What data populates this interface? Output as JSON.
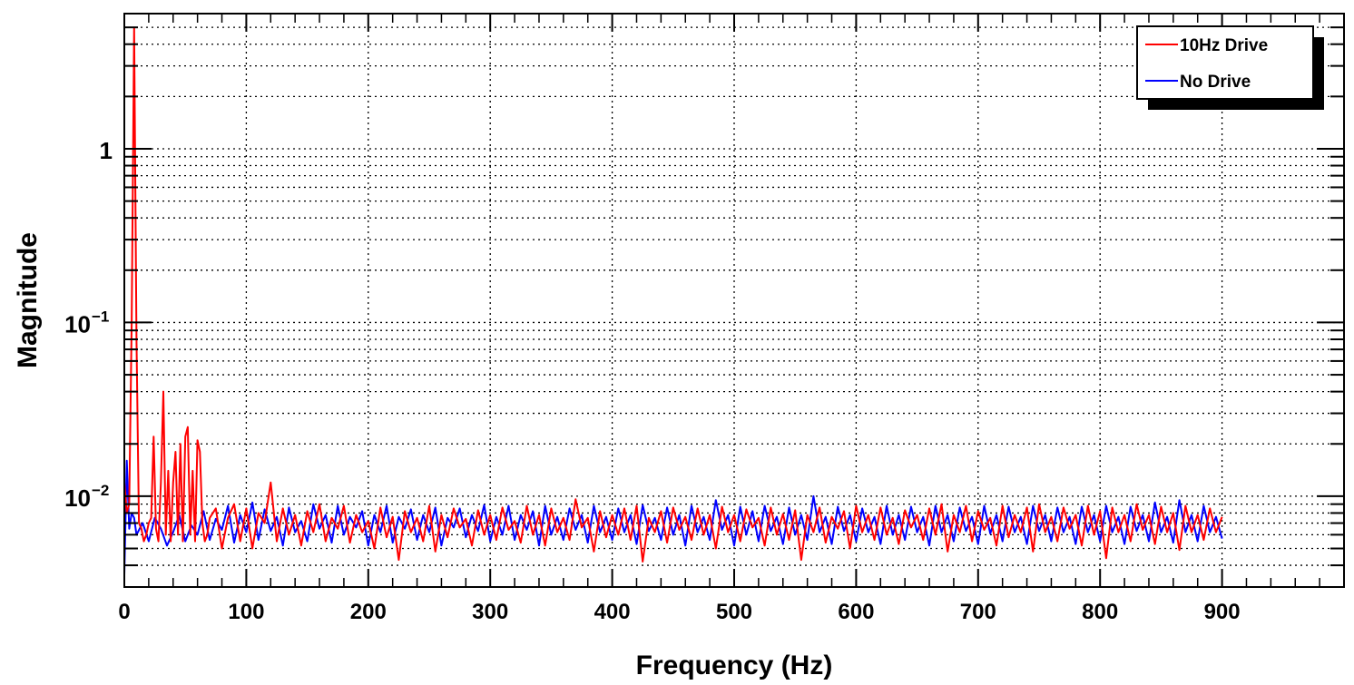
{
  "chart_data": {
    "type": "line",
    "title": "",
    "xlabel": "Frequency (Hz)",
    "ylabel": "Magnitude",
    "xlim": [
      0,
      1000
    ],
    "ylim": [
      0.003,
      6
    ],
    "yscale": "log",
    "x_ticks": [
      "0",
      "100",
      "200",
      "300",
      "400",
      "500",
      "600",
      "700",
      "800",
      "900"
    ],
    "y_ticks": [
      {
        "value": 1,
        "base": "1",
        "exp": ""
      },
      {
        "value": 0.1,
        "base": "10",
        "exp": "−1"
      },
      {
        "value": 0.01,
        "base": "10",
        "exp": "−2"
      }
    ],
    "grid": true,
    "legend_position": "top-right",
    "series": [
      {
        "name": "10Hz Drive",
        "color": "#ff0000",
        "x": [
          0,
          2,
          4,
          6,
          8,
          10,
          12,
          14,
          16,
          18,
          20,
          22,
          24,
          26,
          28,
          30,
          32,
          34,
          36,
          38,
          40,
          42,
          44,
          46,
          48,
          50,
          52,
          54,
          56,
          58,
          60,
          62,
          64,
          66,
          68,
          70,
          75,
          80,
          85,
          90,
          95,
          100,
          105,
          110,
          115,
          120,
          125,
          130,
          135,
          140,
          145,
          150,
          155,
          160,
          165,
          170,
          175,
          180,
          185,
          190,
          195,
          200,
          205,
          210,
          215,
          220,
          225,
          230,
          235,
          240,
          245,
          250,
          255,
          260,
          265,
          270,
          275,
          280,
          285,
          290,
          295,
          300,
          305,
          310,
          315,
          320,
          325,
          330,
          335,
          340,
          345,
          350,
          355,
          360,
          365,
          370,
          375,
          380,
          385,
          390,
          395,
          400,
          405,
          410,
          415,
          420,
          425,
          430,
          435,
          440,
          445,
          450,
          455,
          460,
          465,
          470,
          475,
          480,
          485,
          490,
          495,
          500,
          505,
          510,
          515,
          520,
          525,
          530,
          535,
          540,
          545,
          550,
          555,
          560,
          565,
          570,
          575,
          580,
          585,
          590,
          595,
          600,
          605,
          610,
          615,
          620,
          625,
          630,
          635,
          640,
          645,
          650,
          655,
          660,
          665,
          670,
          675,
          680,
          685,
          690,
          695,
          700,
          705,
          710,
          715,
          720,
          725,
          730,
          735,
          740,
          745,
          750,
          755,
          760,
          765,
          770,
          775,
          780,
          785,
          790,
          795,
          800,
          805,
          810,
          815,
          820,
          825,
          830,
          835,
          840,
          845,
          850,
          855,
          860,
          865,
          870,
          875,
          880,
          885,
          890,
          895,
          900
        ],
        "y": [
          0.012,
          0.008,
          0.009,
          0.1,
          5.0,
          0.08,
          0.007,
          0.0065,
          0.0055,
          0.006,
          0.007,
          0.0075,
          0.022,
          0.0065,
          0.0055,
          0.012,
          0.04,
          0.006,
          0.014,
          0.0055,
          0.012,
          0.018,
          0.006,
          0.02,
          0.0055,
          0.022,
          0.025,
          0.006,
          0.014,
          0.0055,
          0.021,
          0.018,
          0.007,
          0.0055,
          0.006,
          0.0075,
          0.0085,
          0.005,
          0.0075,
          0.009,
          0.0055,
          0.0085,
          0.005,
          0.008,
          0.007,
          0.012,
          0.0055,
          0.0085,
          0.006,
          0.0078,
          0.0052,
          0.0082,
          0.0062,
          0.009,
          0.0055,
          0.0075,
          0.0065,
          0.0088,
          0.0054,
          0.0078,
          0.0062,
          0.0072,
          0.005,
          0.0086,
          0.0058,
          0.0076,
          0.0043,
          0.0082,
          0.0062,
          0.0075,
          0.0055,
          0.0088,
          0.0048,
          0.0078,
          0.0058,
          0.0085,
          0.0066,
          0.0074,
          0.0052,
          0.0083,
          0.006,
          0.0078,
          0.0056,
          0.0086,
          0.0064,
          0.0072,
          0.0054,
          0.0088,
          0.006,
          0.0078,
          0.0052,
          0.0085,
          0.0062,
          0.0075,
          0.0056,
          0.0096,
          0.0066,
          0.0075,
          0.0048,
          0.0082,
          0.0058,
          0.0078,
          0.006,
          0.0085,
          0.0056,
          0.0088,
          0.0042,
          0.0075,
          0.0062,
          0.0082,
          0.0054,
          0.0086,
          0.0064,
          0.0076,
          0.0056,
          0.0085,
          0.006,
          0.0078,
          0.005,
          0.0087,
          0.0062,
          0.0078,
          0.0055,
          0.0084,
          0.0066,
          0.0075,
          0.0052,
          0.0086,
          0.006,
          0.0079,
          0.0056,
          0.0083,
          0.0043,
          0.0078,
          0.0062,
          0.0086,
          0.0054,
          0.0076,
          0.0065,
          0.0082,
          0.005,
          0.0088,
          0.0062,
          0.0078,
          0.0056,
          0.0086,
          0.006,
          0.0075,
          0.0053,
          0.0083,
          0.0066,
          0.0078,
          0.0056,
          0.0085,
          0.006,
          0.009,
          0.0048,
          0.0078,
          0.0062,
          0.0088,
          0.0055,
          0.0082,
          0.0064,
          0.0075,
          0.0052,
          0.0088,
          0.0058,
          0.0078,
          0.0062,
          0.0086,
          0.0048,
          0.009,
          0.0062,
          0.0076,
          0.0055,
          0.0086,
          0.0065,
          0.0078,
          0.0052,
          0.0088,
          0.006,
          0.0082,
          0.0044,
          0.0086,
          0.0062,
          0.0078,
          0.0055,
          0.009,
          0.0064,
          0.0078,
          0.0053,
          0.0087,
          0.0062,
          0.008,
          0.0049,
          0.0088,
          0.0062,
          0.0078,
          0.0056,
          0.0085,
          0.0062,
          0.0076
        ]
      },
      {
        "name": "No Drive",
        "color": "#0000ff",
        "x": [
          0,
          2,
          4,
          6,
          8,
          10,
          15,
          20,
          25,
          30,
          35,
          40,
          45,
          50,
          55,
          60,
          65,
          70,
          75,
          80,
          85,
          90,
          95,
          100,
          105,
          110,
          115,
          120,
          125,
          130,
          135,
          140,
          145,
          150,
          155,
          160,
          165,
          170,
          175,
          180,
          185,
          190,
          195,
          200,
          205,
          210,
          215,
          220,
          225,
          230,
          235,
          240,
          245,
          250,
          255,
          260,
          265,
          270,
          275,
          280,
          285,
          290,
          295,
          300,
          305,
          310,
          315,
          320,
          325,
          330,
          335,
          340,
          345,
          350,
          355,
          360,
          365,
          370,
          375,
          380,
          385,
          390,
          395,
          400,
          405,
          410,
          415,
          420,
          425,
          430,
          435,
          440,
          445,
          450,
          455,
          460,
          465,
          470,
          475,
          480,
          485,
          490,
          495,
          500,
          505,
          510,
          515,
          520,
          525,
          530,
          535,
          540,
          545,
          550,
          555,
          560,
          565,
          570,
          575,
          580,
          585,
          590,
          595,
          600,
          605,
          610,
          615,
          620,
          625,
          630,
          635,
          640,
          645,
          650,
          655,
          660,
          665,
          670,
          675,
          680,
          685,
          690,
          695,
          700,
          705,
          710,
          715,
          720,
          725,
          730,
          735,
          740,
          745,
          750,
          755,
          760,
          765,
          770,
          775,
          780,
          785,
          790,
          795,
          800,
          805,
          810,
          815,
          820,
          825,
          830,
          835,
          840,
          845,
          850,
          855,
          860,
          865,
          870,
          875,
          880,
          885,
          890,
          895,
          900
        ],
        "y": [
          0.0035,
          0.016,
          0.0065,
          0.008,
          0.0075,
          0.006,
          0.007,
          0.0055,
          0.0075,
          0.0065,
          0.0052,
          0.0062,
          0.0078,
          0.0055,
          0.0068,
          0.006,
          0.0082,
          0.0056,
          0.0074,
          0.0064,
          0.0088,
          0.0054,
          0.0078,
          0.0062,
          0.0092,
          0.0056,
          0.0084,
          0.0063,
          0.0076,
          0.0052,
          0.0086,
          0.0062,
          0.0072,
          0.0055,
          0.009,
          0.0065,
          0.0078,
          0.0054,
          0.0088,
          0.006,
          0.0076,
          0.0066,
          0.0082,
          0.0052,
          0.0078,
          0.0062,
          0.0088,
          0.0054,
          0.0076,
          0.0065,
          0.0084,
          0.0056,
          0.0078,
          0.0062,
          0.0086,
          0.0052,
          0.0075,
          0.0066,
          0.0085,
          0.0058,
          0.0078,
          0.0063,
          0.0089,
          0.0055,
          0.0076,
          0.006,
          0.0088,
          0.0056,
          0.0078,
          0.0064,
          0.0082,
          0.0052,
          0.0088,
          0.006,
          0.0076,
          0.0056,
          0.0085,
          0.0064,
          0.0078,
          0.0054,
          0.0088,
          0.0062,
          0.0076,
          0.0056,
          0.0085,
          0.0062,
          0.0078,
          0.0053,
          0.0089,
          0.0063,
          0.0075,
          0.0056,
          0.0086,
          0.006,
          0.0078,
          0.0052,
          0.0088,
          0.0062,
          0.0076,
          0.0056,
          0.0095,
          0.0064,
          0.0078,
          0.0052,
          0.0087,
          0.006,
          0.0082,
          0.0055,
          0.0088,
          0.0063,
          0.0076,
          0.0053,
          0.0086,
          0.006,
          0.0078,
          0.0056,
          0.01,
          0.0062,
          0.0076,
          0.0053,
          0.0087,
          0.0063,
          0.0078,
          0.0055,
          0.0085,
          0.0062,
          0.0076,
          0.0053,
          0.0088,
          0.006,
          0.0078,
          0.0056,
          0.0087,
          0.0062,
          0.0076,
          0.0052,
          0.0088,
          0.0062,
          0.0078,
          0.0055,
          0.0086,
          0.0063,
          0.0076,
          0.0053,
          0.0088,
          0.0061,
          0.0078,
          0.0055,
          0.0087,
          0.0062,
          0.0076,
          0.0053,
          0.0088,
          0.0063,
          0.0078,
          0.0055,
          0.0086,
          0.0062,
          0.0076,
          0.0053,
          0.0087,
          0.0062,
          0.0078,
          0.0055,
          0.0088,
          0.0062,
          0.0076,
          0.0053,
          0.0087,
          0.0063,
          0.0078,
          0.0055,
          0.0092,
          0.0062,
          0.0076,
          0.0054,
          0.0095,
          0.0062,
          0.0078,
          0.0055,
          0.0088,
          0.0062,
          0.0076,
          0.0057
        ]
      }
    ]
  }
}
